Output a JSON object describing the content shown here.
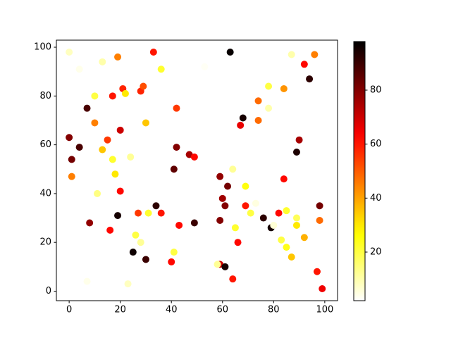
{
  "chart_data": {
    "type": "scatter",
    "x": [
      0,
      4,
      13,
      19,
      33,
      36,
      63,
      53,
      87,
      96,
      92,
      94,
      10,
      7,
      17,
      21,
      22,
      28,
      29,
      42,
      78,
      74,
      84,
      78,
      10,
      30,
      20,
      15,
      0,
      1,
      4,
      13,
      17,
      24,
      18,
      1,
      11,
      20,
      42,
      41,
      47,
      49,
      68,
      67,
      74,
      90,
      89,
      64,
      59,
      62,
      60,
      61,
      69,
      84,
      69,
      73,
      71,
      82,
      85,
      76,
      79,
      80,
      89,
      89,
      98,
      98,
      92,
      83,
      85,
      87,
      97,
      99,
      65,
      66,
      59,
      59,
      58,
      61,
      64,
      41,
      40,
      34,
      36,
      43,
      49,
      27,
      31,
      26,
      28,
      30,
      25,
      23,
      7,
      8,
      16,
      19
    ],
    "y": [
      98,
      91,
      94,
      96,
      98,
      91,
      98,
      92,
      97,
      97,
      93,
      87,
      80,
      75,
      80,
      83,
      81,
      82,
      84,
      75,
      84,
      78,
      83,
      75,
      69,
      69,
      66,
      62,
      63,
      54,
      59,
      58,
      54,
      55,
      48,
      47,
      40,
      41,
      59,
      50,
      56,
      55,
      71,
      68,
      70,
      62,
      57,
      50,
      47,
      43,
      38,
      35,
      43,
      46,
      35,
      36,
      32,
      32,
      33,
      30,
      26,
      27,
      30,
      27,
      35,
      29,
      22,
      21,
      18,
      14,
      8,
      1,
      26,
      20,
      29,
      11,
      11,
      10,
      5,
      16,
      12,
      35,
      32,
      27,
      28,
      32,
      32,
      23,
      20,
      13,
      16,
      3,
      4,
      28,
      25,
      31
    ],
    "c": [
      8,
      4,
      10,
      45,
      60,
      22,
      97,
      3,
      10,
      45,
      62,
      92,
      20,
      88,
      60,
      58,
      30,
      58,
      52,
      55,
      20,
      48,
      42,
      10,
      45,
      35,
      70,
      55,
      80,
      82,
      88,
      35,
      22,
      12,
      30,
      45,
      14,
      62,
      80,
      85,
      75,
      62,
      95,
      66,
      48,
      75,
      94,
      12,
      78,
      82,
      76,
      80,
      25,
      62,
      60,
      5,
      20,
      62,
      22,
      92,
      95,
      6,
      18,
      30,
      82,
      48,
      38,
      20,
      24,
      35,
      60,
      65,
      22,
      62,
      80,
      70,
      12,
      95,
      60,
      20,
      62,
      92,
      60,
      62,
      90,
      55,
      22,
      20,
      12,
      90,
      96,
      8,
      4,
      78,
      62,
      95
    ],
    "colormap": "hot_r",
    "clim": [
      2,
      98
    ],
    "cticks": [
      20,
      40,
      60,
      80
    ],
    "xlim": [
      -5,
      105
    ],
    "ylim": [
      -3.9,
      102.9
    ],
    "xticks": [
      0,
      20,
      40,
      60,
      80,
      100
    ],
    "yticks": [
      0,
      20,
      40,
      60,
      80,
      100
    ]
  }
}
